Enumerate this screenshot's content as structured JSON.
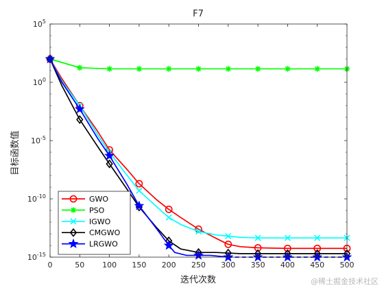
{
  "chart_data": {
    "type": "line",
    "title": "F7",
    "xlabel": "迭代次数",
    "ylabel": "目标函数值",
    "xlim": [
      0,
      500
    ],
    "ylim_log10": [
      -15,
      5
    ],
    "yscale": "log",
    "grid": false,
    "legend_position": "bottom-left",
    "x_ticks": [
      0,
      50,
      100,
      150,
      200,
      250,
      300,
      350,
      400,
      450,
      500
    ],
    "y_ticks": [
      {
        "base": "10",
        "exp": "5",
        "log10": 5
      },
      {
        "base": "10",
        "exp": "0",
        "log10": 0
      },
      {
        "base": "10",
        "exp": "-5",
        "log10": -5
      },
      {
        "base": "10",
        "exp": "-10",
        "log10": -10
      },
      {
        "base": "10",
        "exp": "-15",
        "log10": -15
      }
    ],
    "series": [
      {
        "name": "GWO",
        "color": "#ff0000",
        "marker": "circle",
        "dash": "",
        "x": [
          0,
          20,
          50,
          80,
          100,
          130,
          150,
          180,
          200,
          220,
          250,
          280,
          300,
          320,
          350,
          400,
          450,
          500
        ],
        "log10y": [
          2.0,
          0.3,
          -2.0,
          -4.2,
          -5.8,
          -7.5,
          -8.7,
          -10.1,
          -10.9,
          -11.6,
          -12.6,
          -13.4,
          -13.9,
          -14.1,
          -14.2,
          -14.25,
          -14.25,
          -14.25
        ]
      },
      {
        "name": "PSO",
        "color": "#00ff00",
        "marker": "asterisk",
        "dash": "",
        "x": [
          0,
          50,
          100,
          150,
          200,
          250,
          300,
          350,
          400,
          450,
          500
        ],
        "log10y": [
          2.0,
          1.25,
          1.15,
          1.15,
          1.15,
          1.15,
          1.15,
          1.15,
          1.15,
          1.15,
          1.15
        ]
      },
      {
        "name": "IGWO",
        "color": "#00ffff",
        "marker": "x",
        "dash": "",
        "x": [
          0,
          20,
          50,
          80,
          100,
          130,
          150,
          180,
          200,
          220,
          250,
          280,
          300,
          320,
          350,
          400,
          450,
          500
        ],
        "log10y": [
          2.0,
          0.1,
          -2.0,
          -4.5,
          -6.0,
          -8.0,
          -9.3,
          -10.7,
          -11.6,
          -12.2,
          -12.8,
          -13.1,
          -13.2,
          -13.3,
          -13.35,
          -13.35,
          -13.35,
          -13.35
        ]
      },
      {
        "name": "CMGWO",
        "color": "#000000",
        "marker": "diamond",
        "dash": "",
        "x": [
          0,
          20,
          50,
          80,
          100,
          130,
          150,
          180,
          200,
          220,
          250,
          280,
          300,
          320,
          350,
          400,
          450,
          500
        ],
        "log10y": [
          2.0,
          -0.3,
          -3.2,
          -5.5,
          -7.0,
          -9.2,
          -10.7,
          -12.5,
          -13.6,
          -14.3,
          -14.6,
          -14.6,
          -14.65,
          -14.7,
          -14.7,
          -14.7,
          -14.7,
          -14.7
        ]
      },
      {
        "name": "LRGWO",
        "color": "#0000ff",
        "marker": "star",
        "dash": "",
        "x": [
          0,
          20,
          50,
          80,
          100,
          130,
          150,
          180,
          200,
          210,
          230,
          250,
          270,
          300
        ],
        "log10y": [
          2.0,
          0.0,
          -2.3,
          -4.8,
          -6.3,
          -8.8,
          -10.6,
          -12.6,
          -14.0,
          -14.6,
          -14.85,
          -14.85,
          -14.85,
          -15.0
        ]
      },
      {
        "name": "",
        "color": "#0000ff",
        "marker": "star",
        "dash": "6,4",
        "legend": false,
        "x": [
          300,
          350,
          400,
          450,
          500
        ],
        "log10y": [
          -15.0,
          -15.0,
          -15.0,
          -15.0,
          -15.0
        ]
      }
    ]
  },
  "watermark": "@稀土掘金技术社区"
}
